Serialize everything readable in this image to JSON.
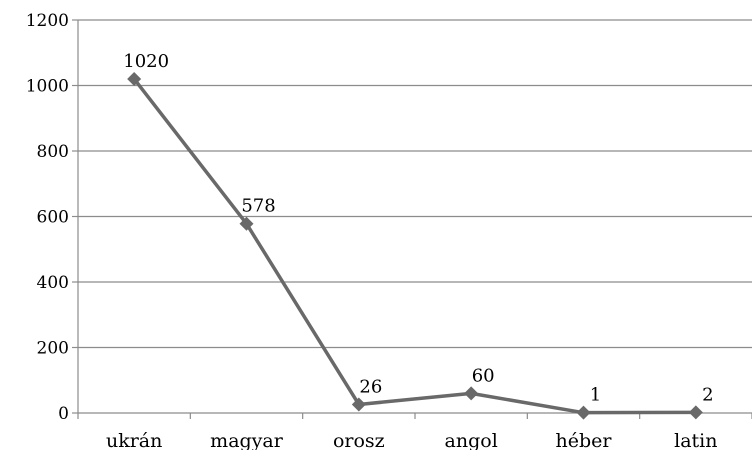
{
  "chart_data": {
    "type": "line",
    "categories": [
      "ukrán",
      "magyar",
      "orosz",
      "angol",
      "héber",
      "latin"
    ],
    "series": [
      {
        "values": [
          1020,
          578,
          26,
          60,
          1,
          2
        ],
        "data_labels": [
          "1020",
          "578",
          "26",
          "60",
          "1",
          "2"
        ]
      }
    ],
    "y_ticks": [
      "0",
      "200",
      "400",
      "600",
      "800",
      "1000",
      "1200"
    ],
    "ylim": [
      0,
      1200
    ],
    "grid": "horizontal",
    "legend": "none",
    "colors": {
      "line": "#696969",
      "marker": "#696969",
      "grid": "#8c8c8c",
      "axis": "#8c8c8c"
    }
  }
}
